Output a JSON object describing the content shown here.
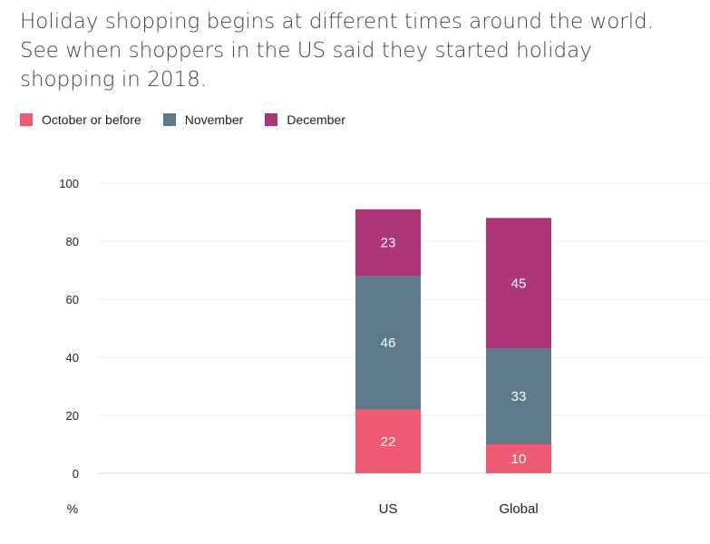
{
  "title": "Holiday shopping begins at different times around the world. See when shoppers in the US said they started holiday shopping in 2018.",
  "legend": {
    "items": [
      {
        "label": "October or before",
        "color": "#ef5b72"
      },
      {
        "label": "November",
        "color": "#5c7a8a"
      },
      {
        "label": "December",
        "color": "#ad3578"
      }
    ]
  },
  "chart_data": {
    "type": "bar",
    "stacked": true,
    "categories": [
      "US",
      "Global"
    ],
    "series": [
      {
        "name": "October or before",
        "values": [
          22,
          10
        ],
        "color": "#ef5b72"
      },
      {
        "name": "November",
        "values": [
          46,
          33
        ],
        "color": "#5c7a8a"
      },
      {
        "name": "December",
        "values": [
          23,
          45
        ],
        "color": "#ad3578"
      }
    ],
    "ylabel": "%",
    "ylim": [
      0,
      100
    ],
    "yticks": [
      0,
      20,
      40,
      60,
      80,
      100
    ],
    "grid": true,
    "legend_position": "top-left"
  }
}
